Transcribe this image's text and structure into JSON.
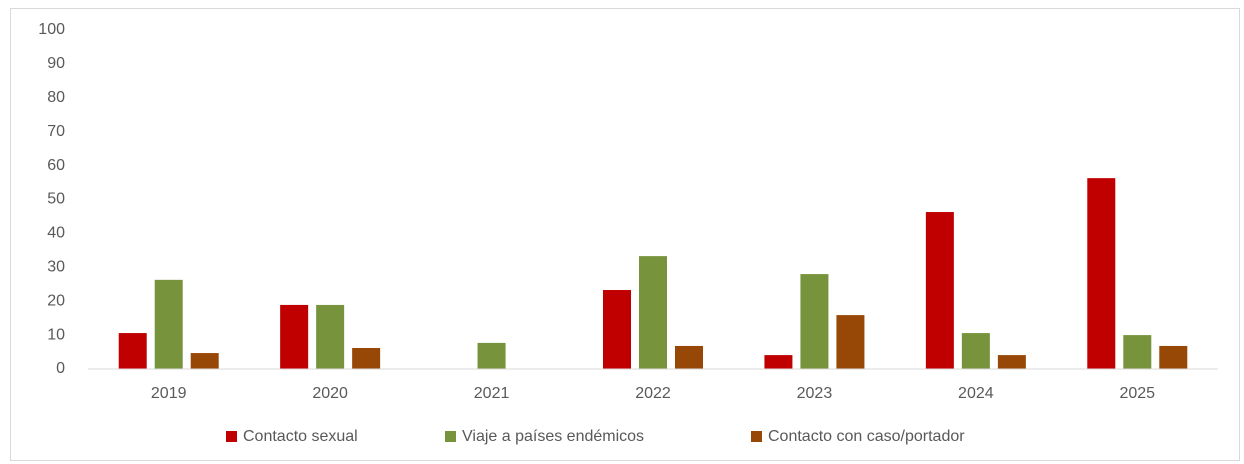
{
  "chart_data": {
    "type": "bar",
    "categories": [
      "2019",
      "2020",
      "2021",
      "2022",
      "2023",
      "2024",
      "2025"
    ],
    "series": [
      {
        "name": "Contacto sexual",
        "color": "#c00000",
        "values": [
          10.6,
          18.9,
          0,
          23.3,
          4.1,
          46.3,
          56.3
        ]
      },
      {
        "name": "Viaje a países endémicos",
        "color": "#77933c",
        "values": [
          26.3,
          18.9,
          7.7,
          33.3,
          28,
          10.6,
          10
        ]
      },
      {
        "name": "Contacto con caso/portador",
        "color": "#974706",
        "values": [
          4.7,
          6.2,
          0,
          6.8,
          15.9,
          4.1,
          6.8
        ]
      }
    ],
    "ylim": [
      0,
      100
    ],
    "yticks": [
      0,
      10,
      20,
      30,
      40,
      50,
      60,
      70,
      80,
      90,
      100
    ],
    "grid": false,
    "legend": "bottom"
  }
}
